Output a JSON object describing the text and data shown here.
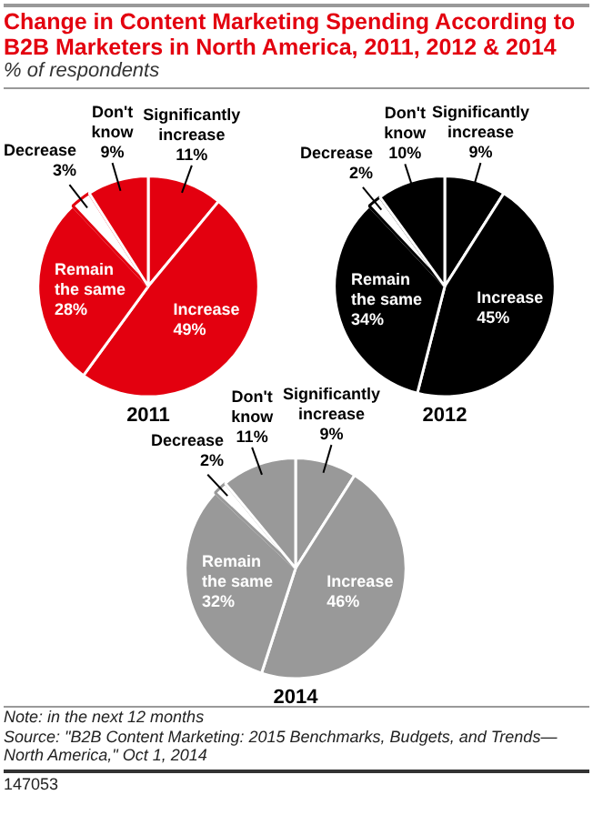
{
  "chart_data": [
    {
      "type": "pie",
      "title": "Change in Content Marketing Spending According to B2B Marketers in North America, 2011, 2012 & 2014",
      "subtitle": "% of respondents",
      "xlabel": "2011",
      "categories": [
        "Significantly increase",
        "Increase",
        "Remain the same",
        "Decrease",
        "Don't know"
      ],
      "values": [
        11,
        49,
        28,
        3,
        9
      ],
      "value_labels": [
        "11%",
        "49%",
        "28%",
        "3%",
        "9%"
      ],
      "colors": [
        "#e3000f",
        "#e3000f",
        "#e3000f",
        "#ffffff",
        "#e3000f"
      ],
      "legend": false
    },
    {
      "type": "pie",
      "xlabel": "2012",
      "categories": [
        "Significantly increase",
        "Increase",
        "Remain the same",
        "Decrease",
        "Don't know"
      ],
      "values": [
        9,
        45,
        34,
        2,
        10
      ],
      "value_labels": [
        "9%",
        "45%",
        "34%",
        "2%",
        "10%"
      ],
      "colors": [
        "#000000",
        "#000000",
        "#000000",
        "#ffffff",
        "#000000"
      ],
      "legend": false
    },
    {
      "type": "pie",
      "xlabel": "2014",
      "categories": [
        "Significantly increase",
        "Increase",
        "Remain the same",
        "Decrease",
        "Don't know"
      ],
      "values": [
        9,
        46,
        32,
        2,
        11
      ],
      "value_labels": [
        "9%",
        "46%",
        "32%",
        "2%",
        "11%"
      ],
      "colors": [
        "#999999",
        "#999999",
        "#999999",
        "#ffffff",
        "#999999"
      ],
      "legend": false,
      "annotations": [
        "Note: in the next 12 months",
        "Source: \"B2B Content Marketing: 2015 Benchmarks, Budgets, and Trends—North America,\" Oct 1, 2014",
        "147053"
      ]
    }
  ]
}
